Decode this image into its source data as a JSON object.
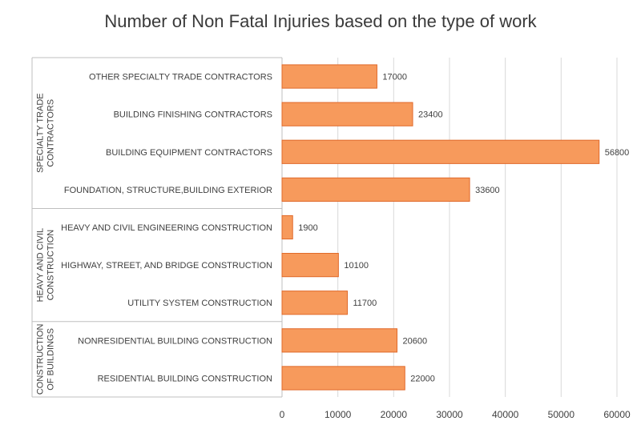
{
  "chart_data": {
    "type": "bar",
    "orientation": "horizontal",
    "title": "Number of Non Fatal Injuries based on the type of work",
    "xlim": [
      0,
      60000
    ],
    "x_ticks": [
      0,
      10000,
      20000,
      30000,
      40000,
      50000,
      60000
    ],
    "grid": "vertical",
    "legend": "none",
    "bar_color": "#F79A5C",
    "bar_edge_color": "#E0692A",
    "groups": [
      {
        "name": "SPECIALTY TRADE CONTRACTORS",
        "label_lines": [
          "SPECIALTY TRADE",
          "CONTRACTORS"
        ],
        "categories": [
          {
            "label": "OTHER SPECIALTY TRADE CONTRACTORS",
            "value": 17000
          },
          {
            "label": "BUILDING FINISHING CONTRACTORS",
            "value": 23400
          },
          {
            "label": "BUILDING EQUIPMENT CONTRACTORS",
            "value": 56800
          },
          {
            "label": "FOUNDATION, STRUCTURE,BUILDING EXTERIOR",
            "value": 33600
          }
        ]
      },
      {
        "name": "HEAVY AND CIVIL CONSTRUCTION",
        "label_lines": [
          "HEAVY AND CIVIL",
          "CONSTRUCTION"
        ],
        "categories": [
          {
            "label": "HEAVY AND CIVIL ENGINEERING CONSTRUCTION",
            "value": 1900
          },
          {
            "label": "HIGHWAY, STREET, AND BRIDGE CONSTRUCTION",
            "value": 10100
          },
          {
            "label": "UTILITY SYSTEM CONSTRUCTION",
            "value": 11700
          }
        ]
      },
      {
        "name": "CONSTRUCTION OF BUILDINGS",
        "label_lines": [
          "CONSTRUCTION",
          "OF BUILDINGS"
        ],
        "categories": [
          {
            "label": "NONRESIDENTIAL BUILDING CONSTRUCTION",
            "value": 20600
          },
          {
            "label": "RESIDENTIAL BUILDING CONSTRUCTION",
            "value": 22000
          }
        ]
      }
    ]
  }
}
